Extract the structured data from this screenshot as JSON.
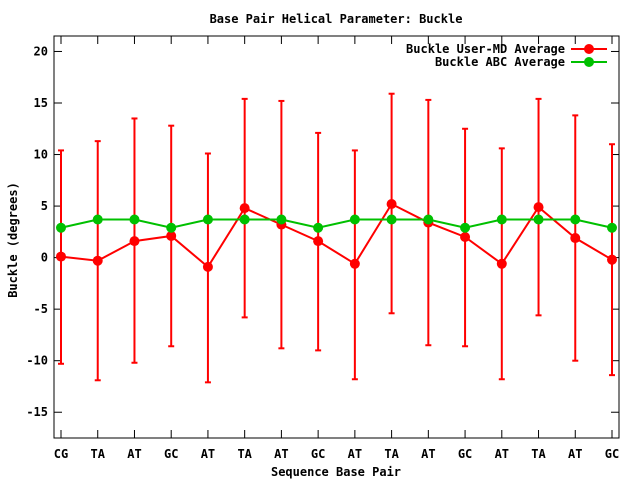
{
  "chart_data": {
    "type": "line",
    "title": "Base Pair Helical Parameter: Buckle",
    "xlabel": "Sequence Base Pair",
    "ylabel": "Buckle (degrees)",
    "categories": [
      "CG",
      "TA",
      "AT",
      "GC",
      "AT",
      "TA",
      "AT",
      "GC",
      "AT",
      "TA",
      "AT",
      "GC",
      "AT",
      "TA",
      "AT",
      "GC"
    ],
    "ylim": [
      -17.5,
      21.5
    ],
    "yticks": [
      -15,
      -10,
      -5,
      0,
      5,
      10,
      15,
      20
    ],
    "grid": false,
    "legend": "top-right",
    "series": [
      {
        "name": "Buckle User-MD Average",
        "color": "#ff0000",
        "values": [
          0.1,
          -0.3,
          1.6,
          2.1,
          -0.9,
          4.8,
          3.2,
          1.6,
          -0.6,
          5.2,
          3.4,
          2.0,
          -0.6,
          4.9,
          1.9,
          -0.2
        ],
        "err_low": [
          -10.3,
          -11.9,
          -10.2,
          -8.6,
          -12.1,
          -5.8,
          -8.8,
          -9.0,
          -11.8,
          -5.4,
          -8.5,
          -8.6,
          -11.8,
          -5.6,
          -10.0,
          -11.4
        ],
        "err_high": [
          10.4,
          11.3,
          13.5,
          12.8,
          10.1,
          15.4,
          15.2,
          12.1,
          10.4,
          15.9,
          15.3,
          12.5,
          10.6,
          15.4,
          13.8,
          11.0
        ]
      },
      {
        "name": "Buckle ABC Average",
        "color": "#00c000",
        "values": [
          2.9,
          3.7,
          3.7,
          2.9,
          3.7,
          3.7,
          3.7,
          2.9,
          3.7,
          3.7,
          3.7,
          2.9,
          3.7,
          3.7,
          3.7,
          2.9
        ]
      }
    ]
  }
}
